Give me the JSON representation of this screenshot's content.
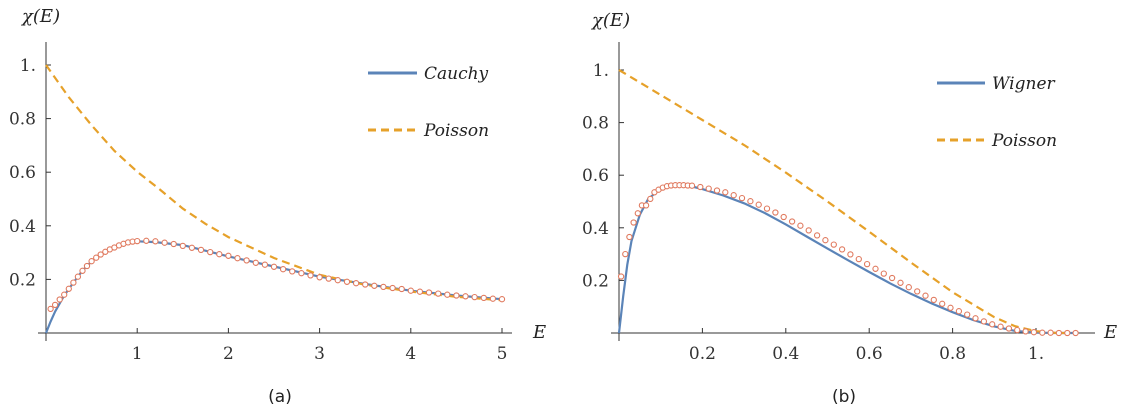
{
  "colors": {
    "fit": "#5b84b8",
    "poisson": "#e6a12a",
    "markers": "#e07a5f",
    "axis": "#333333"
  },
  "chart_data": [
    {
      "type": "line",
      "caption": "(a)",
      "ylabel": "χ(E)",
      "xlabel": "E",
      "xlim": [
        0,
        5.1
      ],
      "ylim": [
        0,
        1.05
      ],
      "xticks": [
        {
          "v": 1,
          "label": "1"
        },
        {
          "v": 2,
          "label": "2"
        },
        {
          "v": 3,
          "label": "3"
        },
        {
          "v": 4,
          "label": "4"
        },
        {
          "v": 5,
          "label": "5"
        }
      ],
      "yticks": [
        {
          "v": 0.2,
          "label": "0.2"
        },
        {
          "v": 0.4,
          "label": "0.4"
        },
        {
          "v": 0.6,
          "label": "0.6"
        },
        {
          "v": 0.8,
          "label": "0.8"
        },
        {
          "v": 1.0,
          "label": "1."
        }
      ],
      "grid": false,
      "legend_position": "top-right",
      "series": [
        {
          "name": "Cauchy",
          "style": "solid",
          "x": [
            0,
            0.05,
            0.1,
            0.2,
            0.3,
            0.4,
            0.5,
            0.6,
            0.8,
            1.0,
            1.2,
            1.5,
            2.0,
            2.5,
            3.0,
            3.5,
            4.0,
            4.5,
            5.0
          ],
          "y": [
            0,
            0.043,
            0.08,
            0.14,
            0.188,
            0.233,
            0.267,
            0.293,
            0.327,
            0.342,
            0.339,
            0.328,
            0.286,
            0.248,
            0.21,
            0.183,
            0.158,
            0.14,
            0.126
          ]
        },
        {
          "name": "Poisson",
          "style": "dashed",
          "x": [
            0,
            0.25,
            0.5,
            0.75,
            1.0,
            1.25,
            1.5,
            1.75,
            2.0,
            2.5,
            3.0,
            3.5,
            4.0,
            4.5,
            5.0
          ],
          "y": [
            1.0,
            0.88,
            0.775,
            0.68,
            0.602,
            0.535,
            0.464,
            0.407,
            0.358,
            0.28,
            0.217,
            0.18,
            0.155,
            0.135,
            0.122
          ]
        }
      ],
      "markers": {
        "x": [
          0.05,
          0.1,
          0.15,
          0.2,
          0.25,
          0.3,
          0.35,
          0.4,
          0.45,
          0.5,
          0.55,
          0.6,
          0.65,
          0.7,
          0.75,
          0.8,
          0.85,
          0.9,
          0.95,
          1.0,
          1.1,
          1.2,
          1.3,
          1.4,
          1.5,
          1.6,
          1.7,
          1.8,
          1.9,
          2.0,
          2.1,
          2.2,
          2.3,
          2.4,
          2.5,
          2.6,
          2.7,
          2.8,
          2.9,
          3.0,
          3.1,
          3.2,
          3.3,
          3.4,
          3.5,
          3.6,
          3.7,
          3.8,
          3.9,
          4.0,
          4.1,
          4.2,
          4.3,
          4.4,
          4.5,
          4.6,
          4.7,
          4.8,
          4.9,
          5.0
        ],
        "y": [
          0.09,
          0.105,
          0.125,
          0.143,
          0.165,
          0.188,
          0.21,
          0.232,
          0.25,
          0.268,
          0.281,
          0.293,
          0.303,
          0.312,
          0.319,
          0.327,
          0.333,
          0.338,
          0.341,
          0.343,
          0.344,
          0.342,
          0.337,
          0.332,
          0.325,
          0.318,
          0.31,
          0.302,
          0.294,
          0.288,
          0.279,
          0.271,
          0.262,
          0.255,
          0.247,
          0.238,
          0.23,
          0.223,
          0.215,
          0.208,
          0.203,
          0.197,
          0.191,
          0.186,
          0.181,
          0.176,
          0.172,
          0.168,
          0.164,
          0.158,
          0.154,
          0.151,
          0.147,
          0.143,
          0.14,
          0.137,
          0.134,
          0.131,
          0.128,
          0.126
        ]
      }
    },
    {
      "type": "line",
      "caption": "(b)",
      "ylabel": "χ(E)",
      "xlabel": "E",
      "xlim": [
        0,
        1.13
      ],
      "ylim": [
        0,
        1.05
      ],
      "xticks": [
        {
          "v": 0.2,
          "label": "0.2"
        },
        {
          "v": 0.4,
          "label": "0.4"
        },
        {
          "v": 0.6,
          "label": "0.6"
        },
        {
          "v": 0.8,
          "label": "0.8"
        },
        {
          "v": 1.0,
          "label": "1."
        }
      ],
      "yticks": [
        {
          "v": 0.2,
          "label": "0.2"
        },
        {
          "v": 0.4,
          "label": "0.4"
        },
        {
          "v": 0.6,
          "label": "0.6"
        },
        {
          "v": 0.8,
          "label": "0.8"
        },
        {
          "v": 1.0,
          "label": "1."
        }
      ],
      "grid": false,
      "legend_position": "top-right",
      "series": [
        {
          "name": "Wigner",
          "style": "solid",
          "x": [
            0,
            0.01,
            0.02,
            0.03,
            0.05,
            0.07,
            0.1,
            0.13,
            0.15,
            0.18,
            0.2,
            0.25,
            0.3,
            0.35,
            0.4,
            0.45,
            0.5,
            0.55,
            0.6,
            0.65,
            0.7,
            0.75,
            0.8,
            0.85,
            0.9,
            0.95,
            1.0,
            1.05,
            1.1
          ],
          "y": [
            0,
            0.14,
            0.26,
            0.35,
            0.45,
            0.51,
            0.549,
            0.563,
            0.562,
            0.555,
            0.547,
            0.523,
            0.493,
            0.456,
            0.413,
            0.367,
            0.321,
            0.276,
            0.232,
            0.189,
            0.149,
            0.112,
            0.079,
            0.049,
            0.025,
            0.008,
            0.001,
            0,
            0
          ]
        },
        {
          "name": "Poisson",
          "style": "dashed",
          "x": [
            0,
            0.1,
            0.2,
            0.3,
            0.4,
            0.5,
            0.6,
            0.7,
            0.8,
            0.9,
            0.95,
            1.0,
            1.05,
            1.1
          ],
          "y": [
            1.0,
            0.905,
            0.81,
            0.715,
            0.61,
            0.5,
            0.385,
            0.268,
            0.155,
            0.06,
            0.026,
            0.007,
            0,
            0
          ]
        }
      ],
      "markers": {
        "x": [
          0.005,
          0.015,
          0.025,
          0.035,
          0.045,
          0.055,
          0.065,
          0.075,
          0.085,
          0.095,
          0.105,
          0.115,
          0.125,
          0.135,
          0.145,
          0.155,
          0.165,
          0.175,
          0.195,
          0.215,
          0.235,
          0.255,
          0.275,
          0.295,
          0.315,
          0.335,
          0.355,
          0.375,
          0.395,
          0.415,
          0.435,
          0.455,
          0.475,
          0.495,
          0.515,
          0.535,
          0.555,
          0.575,
          0.595,
          0.615,
          0.635,
          0.655,
          0.675,
          0.695,
          0.715,
          0.735,
          0.755,
          0.775,
          0.795,
          0.815,
          0.835,
          0.855,
          0.875,
          0.895,
          0.915,
          0.935,
          0.955,
          0.975,
          0.995,
          1.015,
          1.035,
          1.055,
          1.075,
          1.095
        ],
        "y": [
          0.215,
          0.3,
          0.365,
          0.42,
          0.455,
          0.485,
          0.485,
          0.51,
          0.535,
          0.545,
          0.553,
          0.558,
          0.561,
          0.562,
          0.562,
          0.562,
          0.561,
          0.56,
          0.555,
          0.549,
          0.542,
          0.535,
          0.524,
          0.513,
          0.501,
          0.488,
          0.473,
          0.458,
          0.441,
          0.424,
          0.408,
          0.39,
          0.371,
          0.353,
          0.336,
          0.318,
          0.299,
          0.281,
          0.262,
          0.244,
          0.226,
          0.209,
          0.191,
          0.174,
          0.158,
          0.142,
          0.126,
          0.111,
          0.096,
          0.083,
          0.07,
          0.056,
          0.044,
          0.033,
          0.024,
          0.017,
          0.011,
          0.006,
          0.003,
          0.001,
          0.001,
          0,
          0,
          0
        ]
      }
    }
  ]
}
